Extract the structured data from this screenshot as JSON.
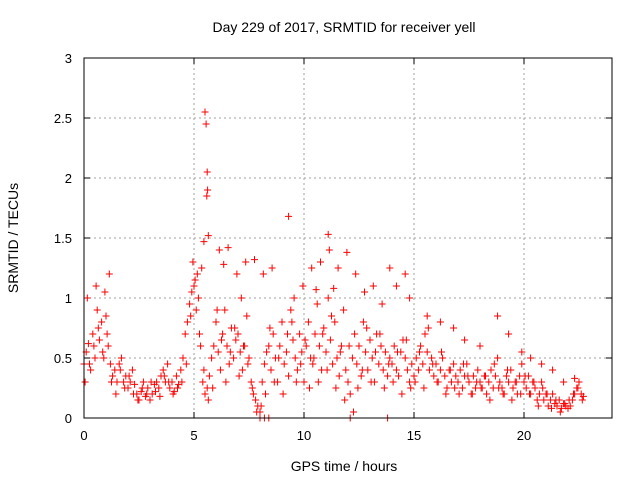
{
  "chart_data": {
    "type": "scatter",
    "title": "Day 229 of 2017, SRMTID for receiver yell",
    "xlabel": "GPS time / hours",
    "ylabel": "SRMTID / TECUs",
    "xlim": [
      0,
      24
    ],
    "ylim": [
      0,
      3
    ],
    "xticks": [
      0,
      5,
      10,
      15,
      20
    ],
    "xtick_labels": [
      "0",
      "5",
      "10",
      "15",
      "20"
    ],
    "yticks": [
      0,
      0.5,
      1,
      1.5,
      2,
      2.5,
      3
    ],
    "ytick_labels": [
      "0",
      "0.5",
      "1",
      "1.5",
      "2",
      "2.5",
      "3"
    ],
    "grid": true,
    "marker": "+",
    "color": "#ff0000",
    "series": [
      {
        "name": "SRMTID",
        "x": [
          0.0,
          0.1,
          0.2,
          0.3,
          0.4,
          0.5,
          0.6,
          0.7,
          0.8,
          0.9,
          1.0,
          1.1,
          1.2,
          1.3,
          1.4,
          1.5,
          1.6,
          1.7,
          1.8,
          1.9,
          2.0,
          2.1,
          2.2,
          2.3,
          2.4,
          2.5,
          2.6,
          2.7,
          2.8,
          2.9,
          3.0,
          3.1,
          3.2,
          3.3,
          3.4,
          3.5,
          3.6,
          3.7,
          3.8,
          3.9,
          4.0,
          4.1,
          4.2,
          4.3,
          4.4,
          4.5,
          4.6,
          4.7,
          4.8,
          4.9,
          5.0,
          5.1,
          5.2,
          5.3,
          5.4,
          5.5,
          5.6,
          5.7,
          5.8,
          5.9,
          6.0,
          6.1,
          6.2,
          6.3,
          6.4,
          6.5,
          6.6,
          6.7,
          6.8,
          6.9,
          7.0,
          7.1,
          7.2,
          7.3,
          7.4,
          7.5,
          7.6,
          7.7,
          7.8,
          7.9,
          8.0,
          8.1,
          8.2,
          8.3,
          8.4,
          8.5,
          8.6,
          8.7,
          8.8,
          8.9,
          9.0,
          9.1,
          9.2,
          9.3,
          9.4,
          9.5,
          9.6,
          9.7,
          9.8,
          9.9,
          10.0,
          10.1,
          10.2,
          10.3,
          10.4,
          10.5,
          10.6,
          10.7,
          10.8,
          10.9,
          11.0,
          11.1,
          11.2,
          11.3,
          11.4,
          11.5,
          11.6,
          11.7,
          11.8,
          11.9,
          12.0,
          12.1,
          12.2,
          12.3,
          12.4,
          12.5,
          12.6,
          12.7,
          12.8,
          12.9,
          13.0,
          13.1,
          13.2,
          13.3,
          13.4,
          13.5,
          13.6,
          13.7,
          13.8,
          13.9,
          14.0,
          14.1,
          14.2,
          14.3,
          14.4,
          14.5,
          14.6,
          14.7,
          14.8,
          14.9,
          15.0,
          15.1,
          15.2,
          15.3,
          15.4,
          15.5,
          15.6,
          15.7,
          15.8,
          15.9,
          16.0,
          16.1,
          16.2,
          16.3,
          16.4,
          16.5,
          16.6,
          16.7,
          16.8,
          16.9,
          17.0,
          17.1,
          17.2,
          17.3,
          17.4,
          17.5,
          17.6,
          17.7,
          17.8,
          17.9,
          18.0,
          18.1,
          18.2,
          18.3,
          18.4,
          18.5,
          18.6,
          18.7,
          18.8,
          18.9,
          19.0,
          19.1,
          19.2,
          19.3,
          19.4,
          19.5,
          19.6,
          19.7,
          19.8,
          19.9,
          20.0,
          20.1,
          20.2,
          20.3,
          20.4,
          20.5,
          20.6,
          20.7,
          20.8,
          20.9,
          21.0,
          21.1,
          21.2,
          21.3,
          21.4,
          21.5,
          21.6,
          21.7,
          21.8,
          21.9,
          22.0,
          22.1,
          22.2,
          22.3,
          22.4,
          22.5,
          22.6,
          22.7,
          0.05,
          0.25,
          0.45,
          0.65,
          0.85,
          1.05,
          1.25,
          1.45,
          1.65,
          1.85,
          2.05,
          2.25,
          2.45,
          2.65,
          2.85,
          3.05,
          3.25,
          3.45,
          3.65,
          3.85,
          4.05,
          4.25,
          4.45,
          4.65,
          4.85,
          5.05,
          5.25,
          5.45,
          5.65,
          5.85,
          6.05,
          6.25,
          6.45,
          6.65,
          6.85,
          7.05,
          7.25,
          7.45,
          7.65,
          7.85,
          8.05,
          8.25,
          8.45,
          8.65,
          8.85,
          9.05,
          9.25,
          9.45,
          9.65,
          9.85,
          10.05,
          10.25,
          10.45,
          10.65,
          10.85,
          11.05,
          11.25,
          11.45,
          11.65,
          11.85,
          12.05,
          12.25,
          12.45,
          12.65,
          12.85,
          13.05,
          13.25,
          13.45,
          13.65,
          13.85,
          14.05,
          14.25,
          14.45,
          14.65,
          14.85,
          15.05,
          15.25,
          15.45,
          15.65,
          15.85,
          16.05,
          16.25,
          16.45,
          16.65,
          16.85,
          17.05,
          17.25,
          17.45,
          17.65,
          17.85,
          18.05,
          18.25,
          18.45,
          18.65,
          18.85,
          19.05,
          19.25,
          19.45,
          19.65,
          19.85,
          20.05,
          20.25,
          20.45,
          20.65,
          20.85,
          21.05,
          21.25,
          21.45,
          21.65,
          21.85,
          22.05,
          22.25,
          22.45,
          22.65,
          0.15,
          0.55,
          0.95,
          1.15,
          4.95,
          5.15,
          5.35,
          5.5,
          5.55,
          5.6,
          5.62,
          5.58,
          5.65,
          6.15,
          6.55,
          6.95,
          7.35,
          7.75,
          8.15,
          8.55,
          9.3,
          9.55,
          9.95,
          10.35,
          10.75,
          11.1,
          11.15,
          11.55,
          11.95,
          12.35,
          12.75,
          13.15,
          13.55,
          13.9,
          14.2,
          14.6,
          14.8,
          15.6,
          16.2,
          16.8,
          17.3,
          18.0,
          18.8,
          19.3,
          19.9,
          20.3,
          20.8,
          21.3,
          21.8,
          22.3,
          8.0,
          8.2,
          8.4,
          12.1,
          13.8,
          5.45,
          6.35,
          7.15,
          10.55,
          11.35
        ],
        "y": [
          0.45,
          0.55,
          0.62,
          0.4,
          0.7,
          0.5,
          0.9,
          0.65,
          0.8,
          0.5,
          0.85,
          0.6,
          0.45,
          0.35,
          0.4,
          0.3,
          0.45,
          0.5,
          0.3,
          0.35,
          0.25,
          0.3,
          0.4,
          0.28,
          0.2,
          0.15,
          0.22,
          0.3,
          0.18,
          0.25,
          0.15,
          0.2,
          0.28,
          0.3,
          0.25,
          0.35,
          0.4,
          0.3,
          0.45,
          0.25,
          0.3,
          0.22,
          0.35,
          0.28,
          0.4,
          0.5,
          0.7,
          0.8,
          0.95,
          1.05,
          1.1,
          0.9,
          1.0,
          0.6,
          0.3,
          0.2,
          0.25,
          0.35,
          0.5,
          0.6,
          0.8,
          0.55,
          0.4,
          0.7,
          0.9,
          0.6,
          0.45,
          0.75,
          0.5,
          0.65,
          0.7,
          0.55,
          0.4,
          0.6,
          0.85,
          0.5,
          0.3,
          0.2,
          0.15,
          0.1,
          0.05,
          0.3,
          0.45,
          0.55,
          0.6,
          0.4,
          0.7,
          0.5,
          0.3,
          0.6,
          0.8,
          0.45,
          0.55,
          0.35,
          0.9,
          0.65,
          0.5,
          0.4,
          0.7,
          0.55,
          0.3,
          0.6,
          0.8,
          0.5,
          0.45,
          0.7,
          0.95,
          0.6,
          0.4,
          0.75,
          0.55,
          1.0,
          0.65,
          0.45,
          0.8,
          0.5,
          0.35,
          0.6,
          0.9,
          0.4,
          0.3,
          0.2,
          0.5,
          0.7,
          0.45,
          0.6,
          0.35,
          0.8,
          0.55,
          0.4,
          0.65,
          0.5,
          0.3,
          0.7,
          0.45,
          0.6,
          0.4,
          0.55,
          0.35,
          0.5,
          0.45,
          0.6,
          0.4,
          0.35,
          0.55,
          0.65,
          0.5,
          0.4,
          0.3,
          0.45,
          0.35,
          0.5,
          0.4,
          0.6,
          0.45,
          0.7,
          0.55,
          0.4,
          0.5,
          0.35,
          0.45,
          0.3,
          0.4,
          0.5,
          0.35,
          0.25,
          0.4,
          0.3,
          0.45,
          0.35,
          0.3,
          0.4,
          0.25,
          0.35,
          0.45,
          0.3,
          0.2,
          0.35,
          0.25,
          0.4,
          0.3,
          0.25,
          0.35,
          0.2,
          0.3,
          0.4,
          0.25,
          0.35,
          0.5,
          0.3,
          0.25,
          0.2,
          0.35,
          0.3,
          0.4,
          0.25,
          0.3,
          0.2,
          0.35,
          0.45,
          0.3,
          0.25,
          0.35,
          0.2,
          0.3,
          0.25,
          0.15,
          0.2,
          0.3,
          0.15,
          0.2,
          0.1,
          0.15,
          0.2,
          0.12,
          0.1,
          0.15,
          0.08,
          0.12,
          0.1,
          0.08,
          0.1,
          0.15,
          0.2,
          0.25,
          0.3,
          0.2,
          0.18,
          0.3,
          0.45,
          0.6,
          0.75,
          0.55,
          0.7,
          0.3,
          0.2,
          0.4,
          0.25,
          0.35,
          0.2,
          0.15,
          0.25,
          0.2,
          0.3,
          0.22,
          0.18,
          0.35,
          0.3,
          0.2,
          0.25,
          0.3,
          0.45,
          0.85,
          1.15,
          0.7,
          0.4,
          0.15,
          0.25,
          0.9,
          0.65,
          0.3,
          0.55,
          0.75,
          0.35,
          0.6,
          0.45,
          0.25,
          0.05,
          0.1,
          0.2,
          0.75,
          0.3,
          0.5,
          0.2,
          0.7,
          0.8,
          0.3,
          0.45,
          0.65,
          0.25,
          0.5,
          0.3,
          0.7,
          0.4,
          0.85,
          0.25,
          0.55,
          0.15,
          0.6,
          0.05,
          0.25,
          0.4,
          0.75,
          0.3,
          0.55,
          0.7,
          0.25,
          0.45,
          0.3,
          0.55,
          0.2,
          0.65,
          0.25,
          0.3,
          0.55,
          0.25,
          0.75,
          0.45,
          0.3,
          0.55,
          0.2,
          0.4,
          0.25,
          0.2,
          0.45,
          0.35,
          0.2,
          0.3,
          0.25,
          0.35,
          0.15,
          0.45,
          0.25,
          0.2,
          0.4,
          0.15,
          0.3,
          0.2,
          0.35,
          0.2,
          0.3,
          0.1,
          0.25,
          0.2,
          0.08,
          0.15,
          0.05,
          0.12,
          0.15,
          0.2,
          0.25,
          0.15,
          1.0,
          1.1,
          1.05,
          1.2,
          1.3,
          1.2,
          1.25,
          2.55,
          2.45,
          2.05,
          1.9,
          1.85,
          1.52,
          1.4,
          1.42,
          1.2,
          1.3,
          1.32,
          1.2,
          1.25,
          1.68,
          1.0,
          1.1,
          1.25,
          1.3,
          1.53,
          1.4,
          1.25,
          1.38,
          1.2,
          1.05,
          1.1,
          0.95,
          1.25,
          1.1,
          1.2,
          1.0,
          0.85,
          0.8,
          0.75,
          0.65,
          0.6,
          0.85,
          0.7,
          0.55,
          0.5,
          0.45,
          0.4,
          0.3,
          0.33,
          0.0,
          0.0,
          0.0,
          0.0,
          0.0,
          1.47,
          1.28,
          1.0,
          1.07,
          1.08
        ]
      }
    ]
  }
}
